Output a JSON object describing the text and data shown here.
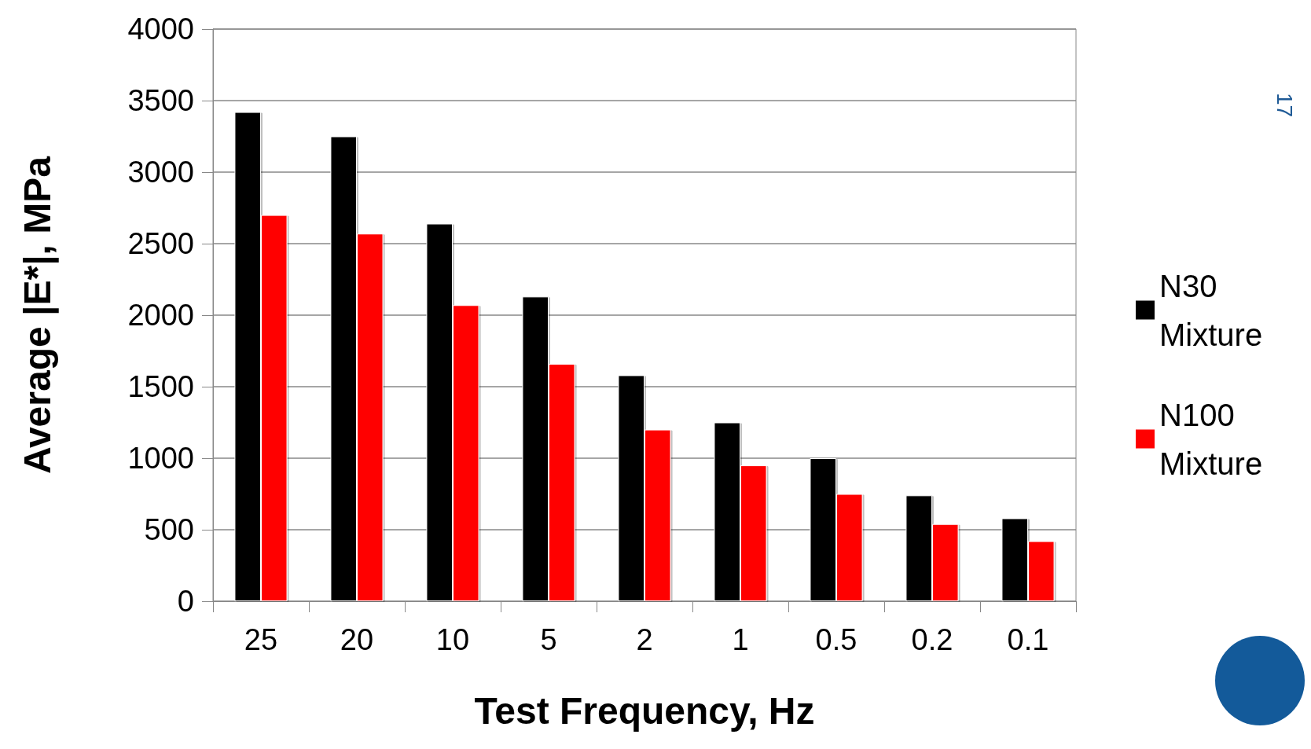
{
  "chart_data": {
    "type": "bar",
    "xlabel": "Test Frequency, Hz",
    "ylabel": "Average |E*|, MPa",
    "categories": [
      "25",
      "20",
      "10",
      "5",
      "2",
      "1",
      "0.5",
      "0.2",
      "0.1"
    ],
    "series": [
      {
        "name": "N30 Mixture",
        "color": "#000000",
        "values": [
          3420,
          3250,
          2640,
          2130,
          1580,
          1250,
          1000,
          740,
          580
        ]
      },
      {
        "name": "N100 Mixture",
        "color": "#ff0000",
        "values": [
          2700,
          2570,
          2070,
          1660,
          1200,
          950,
          750,
          540,
          420
        ]
      }
    ],
    "ylim": [
      0,
      4000
    ],
    "yticks": [
      0,
      500,
      1000,
      1500,
      2000,
      2500,
      3000,
      3500,
      4000
    ],
    "grid": "y",
    "legend": "right",
    "annotations": [
      "17"
    ]
  }
}
